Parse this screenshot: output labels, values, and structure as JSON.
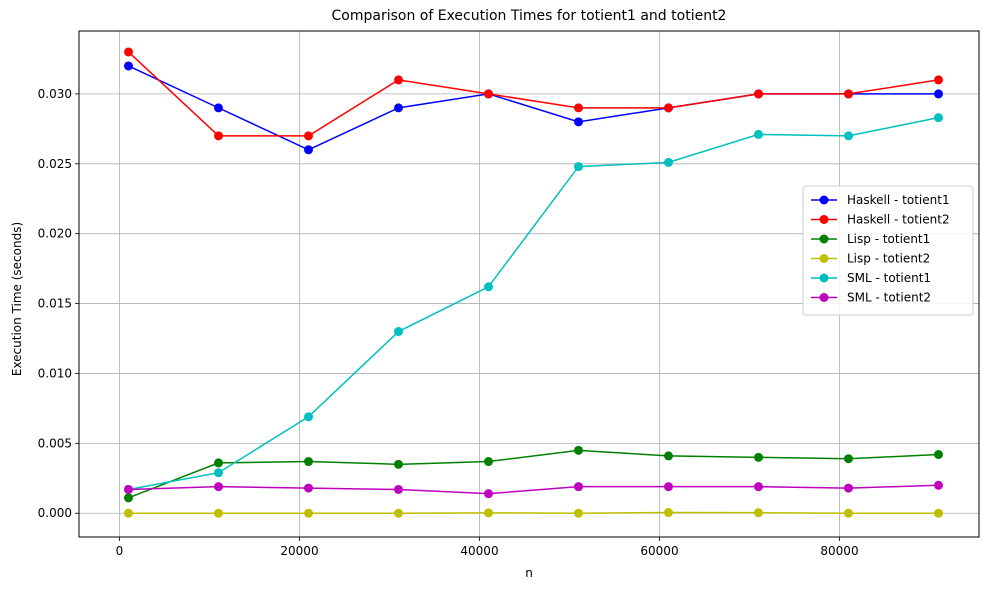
{
  "chart_data": {
    "type": "line",
    "title": "Comparison of Execution Times for totient1 and totient2",
    "xlabel": "n",
    "ylabel": "Execution Time (seconds)",
    "xlim": [
      -4500,
      95500
    ],
    "ylim": [
      -0.0017,
      0.0345
    ],
    "x_ticks": [
      0,
      20000,
      40000,
      60000,
      80000
    ],
    "x_tick_labels": [
      "0",
      "20000",
      "40000",
      "60000",
      "80000"
    ],
    "y_ticks": [
      0.0,
      0.005,
      0.01,
      0.015,
      0.02,
      0.025,
      0.03
    ],
    "y_tick_labels": [
      "0.000",
      "0.005",
      "0.010",
      "0.015",
      "0.020",
      "0.025",
      "0.030"
    ],
    "grid": true,
    "legend_position": "center-right",
    "x": [
      1000,
      11000,
      21000,
      31000,
      41000,
      51000,
      61000,
      71000,
      81000,
      91000
    ],
    "series": [
      {
        "name": "Haskell - totient1",
        "color": "#0000ff",
        "values": [
          0.032,
          0.029,
          0.026,
          0.029,
          0.03,
          0.028,
          0.029,
          0.03,
          0.03,
          0.03
        ]
      },
      {
        "name": "Haskell - totient2",
        "color": "#ff0000",
        "values": [
          0.033,
          0.027,
          0.027,
          0.031,
          0.03,
          0.029,
          0.029,
          0.03,
          0.03,
          0.031
        ]
      },
      {
        "name": "Lisp - totient1",
        "color": "#008000",
        "values": [
          0.0011,
          0.0036,
          0.0037,
          0.0035,
          0.0037,
          0.0045,
          0.0041,
          0.004,
          0.0039,
          0.0042
        ]
      },
      {
        "name": "Lisp - totient2",
        "color": "#bfbf00",
        "values": [
          0.0,
          0.0,
          0.0,
          0.0,
          3e-05,
          0.0,
          5e-05,
          4e-05,
          0.0,
          0.0
        ]
      },
      {
        "name": "SML - totient1",
        "color": "#00bfbf",
        "values": [
          0.0017,
          0.0029,
          0.0069,
          0.013,
          0.0162,
          0.0248,
          0.0251,
          0.0271,
          0.027,
          0.0283
        ]
      },
      {
        "name": "SML - totient2",
        "color": "#bf00bf",
        "values": [
          0.0017,
          0.0019,
          0.0018,
          0.0017,
          0.0014,
          0.0019,
          0.0019,
          0.0019,
          0.0018,
          0.002
        ]
      }
    ]
  }
}
